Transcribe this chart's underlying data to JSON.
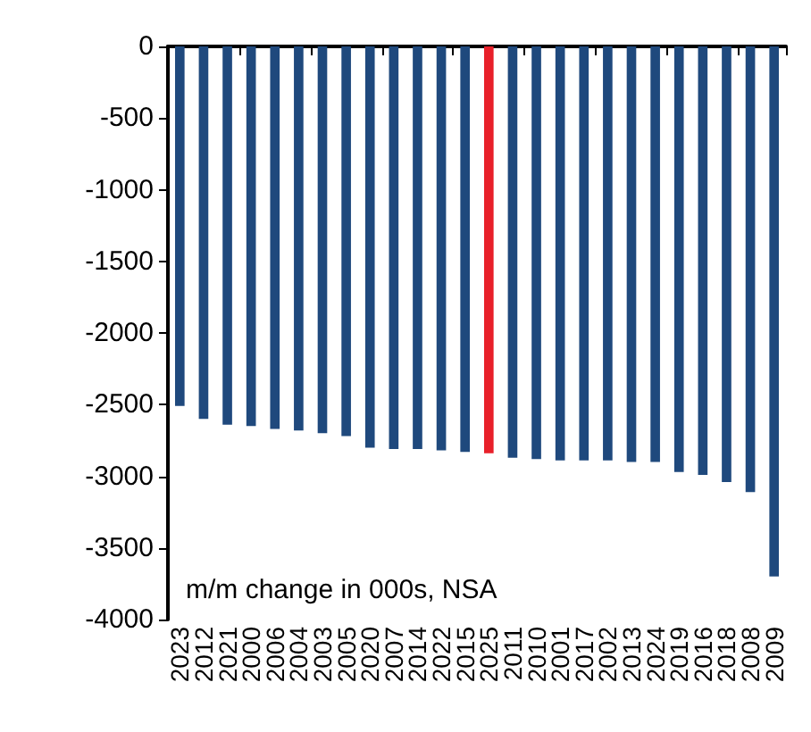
{
  "chart_data": {
    "type": "bar",
    "categories": [
      "2023",
      "2012",
      "2021",
      "2000",
      "2006",
      "2004",
      "2003",
      "2005",
      "2020",
      "2007",
      "2014",
      "2022",
      "2015",
      "2025",
      "2011",
      "2010",
      "2001",
      "2017",
      "2002",
      "2013",
      "2024",
      "2019",
      "2016",
      "2018",
      "2008",
      "2009"
    ],
    "values": [
      -2510,
      -2600,
      -2640,
      -2650,
      -2670,
      -2680,
      -2700,
      -2720,
      -2800,
      -2810,
      -2810,
      -2820,
      -2830,
      -2840,
      -2870,
      -2880,
      -2890,
      -2890,
      -2890,
      -2900,
      -2900,
      -2970,
      -2990,
      -3040,
      -3110,
      -3700
    ],
    "colors": [
      "#1f497d",
      "#1f497d",
      "#1f497d",
      "#1f497d",
      "#1f497d",
      "#1f497d",
      "#1f497d",
      "#1f497d",
      "#1f497d",
      "#1f497d",
      "#1f497d",
      "#1f497d",
      "#1f497d",
      "#e8202a",
      "#1f497d",
      "#1f497d",
      "#1f497d",
      "#1f497d",
      "#1f497d",
      "#1f497d",
      "#1f497d",
      "#1f497d",
      "#1f497d",
      "#1f497d",
      "#1f497d",
      "#1f497d"
    ],
    "ylim": [
      -4000,
      0
    ],
    "yticks": [
      0,
      -500,
      -1000,
      -1500,
      -2000,
      -2500,
      -3000,
      -3500,
      -4000
    ],
    "annotations": [
      "m/m change in 000s, NSA"
    ],
    "grid": false
  }
}
